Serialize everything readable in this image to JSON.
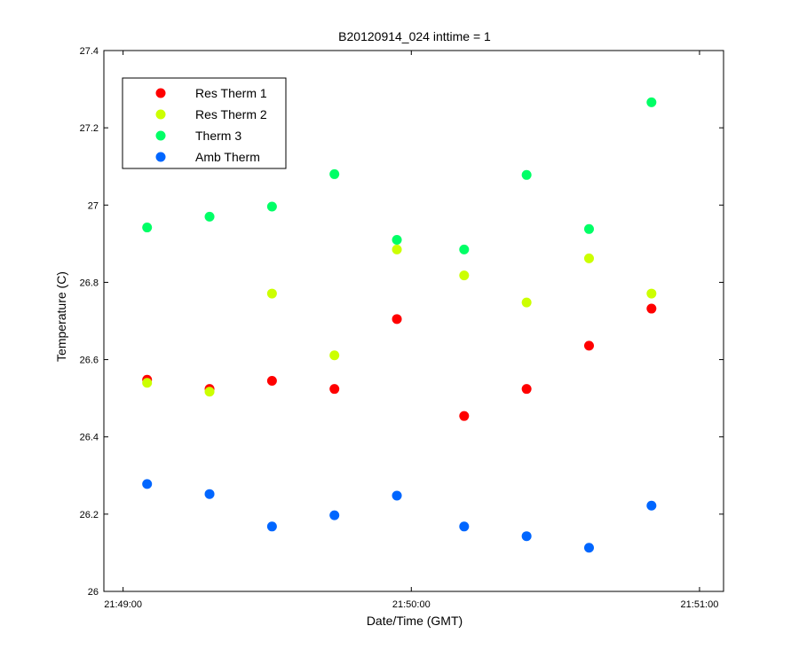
{
  "chart_data": {
    "type": "scatter",
    "title": "B20120914_024 inttime = 1",
    "xlabel": "Date/Time (GMT)",
    "ylabel": "Temperature (C)",
    "xlim": [
      "21:48:56",
      "21:51:05"
    ],
    "ylim": [
      26,
      27.4
    ],
    "x_ticks": [
      "21:49:00",
      "21:50:00",
      "21:51:00"
    ],
    "y_ticks": [
      "26",
      "26.2",
      "26.4",
      "26.6",
      "26.8",
      "27",
      "27.2",
      "27.4"
    ],
    "grid": false,
    "legend_position": "top-left",
    "x": [
      "21:49:05",
      "21:49:18",
      "21:49:31",
      "21:49:44",
      "21:49:57",
      "21:50:11",
      "21:50:24",
      "21:50:37",
      "21:50:50"
    ],
    "series": [
      {
        "name": "Res Therm 1",
        "color": "#ff0000",
        "values": [
          26.548,
          26.524,
          26.545,
          26.524,
          26.705,
          26.454,
          26.524,
          26.636,
          26.732
        ]
      },
      {
        "name": "Res Therm 2",
        "color": "#ccff00",
        "values": [
          26.54,
          26.517,
          26.771,
          26.611,
          26.885,
          26.818,
          26.748,
          26.862,
          26.771
        ]
      },
      {
        "name": "Therm 3",
        "color": "#00ff66",
        "values": [
          26.942,
          26.97,
          26.996,
          27.08,
          26.91,
          26.885,
          27.078,
          26.938,
          27.266
        ]
      },
      {
        "name": "Amb Therm",
        "color": "#0066ff",
        "values": [
          26.278,
          26.252,
          26.168,
          26.197,
          26.248,
          26.168,
          26.143,
          26.113,
          26.222
        ]
      }
    ]
  }
}
